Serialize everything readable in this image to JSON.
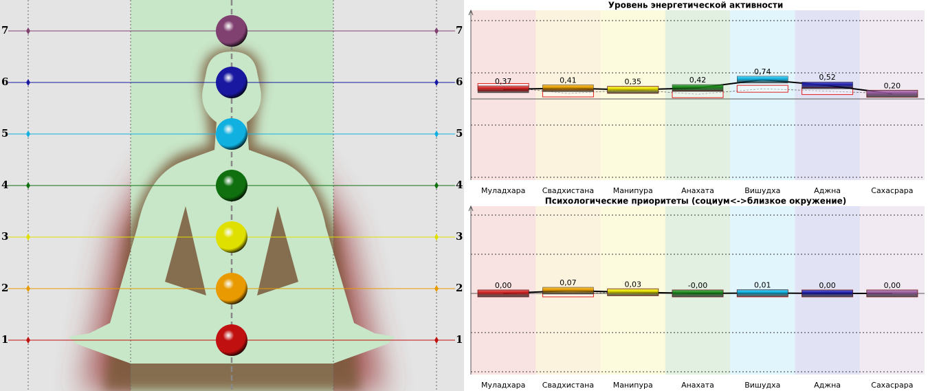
{
  "figure": {
    "levels": [
      1,
      2,
      3,
      4,
      5,
      6,
      7
    ],
    "colors": [
      "#c01010",
      "#e89a00",
      "#e0e000",
      "#107010",
      "#10b0e0",
      "#1818a0",
      "#804070"
    ]
  },
  "chart_data": [
    {
      "type": "bar",
      "title": "Уровень энергетической активности",
      "categories": [
        "Муладхара",
        "Свадхистана",
        "Манипура",
        "Анахата",
        "Вишудха",
        "Аджна",
        "Сахасрара"
      ],
      "colors": [
        "#d42020",
        "#e8a000",
        "#e8e000",
        "#1a8a1a",
        "#10b8e8",
        "#2020b0",
        "#9a5aa0"
      ],
      "series": [
        {
          "values": [
            0.37,
            0.41,
            0.35,
            0.42,
            0.74,
            0.52,
            0.2
          ],
          "value_labels": [
            "0,37",
            "0,41",
            "0,35",
            "0,42",
            "0,74",
            "0,52",
            "0,20"
          ]
        },
        {
          "values": [
            0.46,
            0.21,
            0.35,
            0.18,
            0.39,
            0.3,
            0.2
          ]
        }
      ],
      "ylim": [
        -3,
        3
      ],
      "yticks": [
        -3,
        -1,
        1,
        3
      ]
    },
    {
      "type": "bar",
      "title": "Психологические приоритеты (социум<->близкое окружение)",
      "categories": [
        "Муладхара",
        "Свадхистана",
        "Манипура",
        "Анахата",
        "Вишудха",
        "Аджна",
        "Сахасрара"
      ],
      "colors": [
        "#d42020",
        "#e8a000",
        "#e8e000",
        "#1a8a1a",
        "#10b8e8",
        "#2020b0",
        "#9a5aa0"
      ],
      "series": [
        {
          "values": [
            0.0,
            0.07,
            0.03,
            0.0,
            0.01,
            0.0,
            0.0
          ],
          "value_labels": [
            "0,00",
            "0,07",
            "0,03",
            "-0,00",
            "0,01",
            "0,00",
            "0,00"
          ]
        },
        {
          "values": [
            0.0,
            0.0,
            0.03,
            0.0,
            0.0,
            0.0,
            0.0
          ]
        }
      ],
      "ylim": [
        -2,
        2
      ],
      "yticks": [
        -2,
        -1,
        1,
        2
      ]
    }
  ]
}
